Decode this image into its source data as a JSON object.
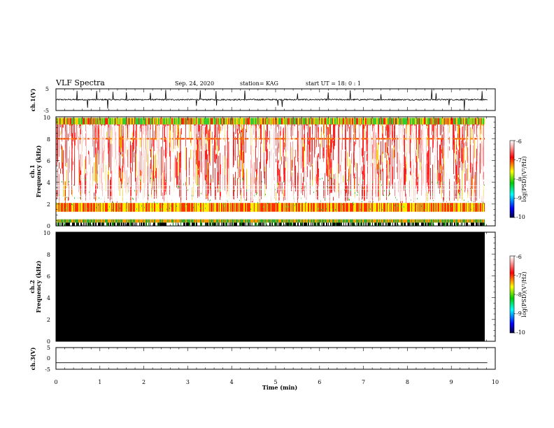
{
  "header": {
    "title": "VLF Spectra",
    "date": "Sep. 24, 2020",
    "station": "station= KAG",
    "start": "start  UT =   18: 0  : 1"
  },
  "colors": {
    "black": "#000000",
    "red": "#ff0000",
    "orange": "#ff9900",
    "yellow": "#ffff00",
    "green": "#00cc33",
    "blue": "#0000ff",
    "darkblue": "#000066"
  },
  "chart_data": [
    {
      "type": "line",
      "name": "ch1-waveform",
      "ylabel": "ch.1(V)",
      "ylim": [
        -5,
        5
      ],
      "yticks": [
        "5",
        "-5"
      ],
      "xlim": [
        0,
        10
      ],
      "baseline": 0,
      "spikes_x": [
        0.48,
        0.72,
        0.93,
        1.18,
        1.3,
        1.6,
        2.15,
        2.5,
        3.2,
        3.28,
        3.65,
        4.3,
        5.05,
        5.15,
        5.5,
        6.2,
        6.7,
        7.4,
        8.55,
        8.65,
        8.95,
        9.3,
        9.7
      ]
    },
    {
      "type": "heatmap",
      "name": "ch1-spectrogram",
      "ylabel": "ch.1",
      "ylabel2": "Frequency (kHz)",
      "ylim": [
        0,
        10
      ],
      "yticks": [
        "0",
        "2",
        "4",
        "6",
        "8",
        "10"
      ],
      "xlim": [
        0,
        9.82
      ],
      "colorbar": {
        "label": "log(PSD)(V²/Hz)",
        "range": [
          -10,
          -6
        ],
        "ticks": [
          "-6",
          "-7",
          "-8",
          "-9",
          "-10"
        ]
      }
    },
    {
      "type": "heatmap",
      "name": "ch2-spectrogram",
      "ylabel": "ch.2",
      "ylabel2": "Frequency (kHz)",
      "ylim": [
        0,
        10
      ],
      "yticks": [
        "0",
        "2",
        "4",
        "6",
        "8",
        "10"
      ],
      "xlim": [
        0,
        9.82
      ],
      "fill": "saturated",
      "colorbar": {
        "label": "log(PSD)(V²/Hz)",
        "range": [
          -10,
          -6
        ],
        "ticks": [
          "-6",
          "-7",
          "-8",
          "-9",
          "-10"
        ]
      }
    },
    {
      "type": "line",
      "name": "ch3-waveform",
      "ylabel": "ch.3(V)",
      "ylim": [
        -5,
        5
      ],
      "yticks": [
        "5",
        "0",
        "-5"
      ],
      "xlim": [
        0,
        10
      ],
      "constant_value": -2
    }
  ],
  "xaxis": {
    "label": "Time  (min)",
    "ticks": [
      "0",
      "1",
      "2",
      "3",
      "4",
      "5",
      "6",
      "7",
      "8",
      "9",
      "10"
    ]
  }
}
